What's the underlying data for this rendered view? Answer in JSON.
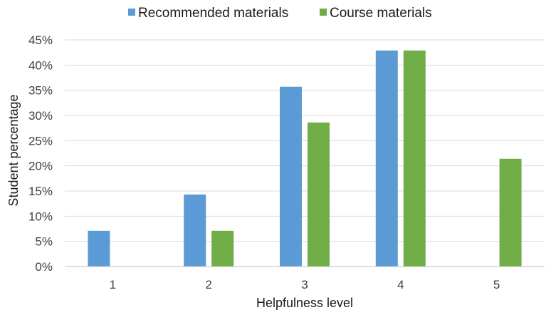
{
  "chart_data": {
    "type": "bar",
    "title": "",
    "xlabel": "Helpfulness level",
    "ylabel": "Student percentage",
    "categories": [
      "1",
      "2",
      "3",
      "4",
      "5"
    ],
    "series": [
      {
        "name": "Recommended materials",
        "color": "#5b9bd5",
        "values": [
          7.1,
          14.3,
          35.7,
          42.9,
          0
        ]
      },
      {
        "name": "Course materials",
        "color": "#70ad47",
        "values": [
          0,
          7.1,
          28.6,
          42.9,
          21.4
        ]
      }
    ],
    "ylim": [
      0,
      45
    ],
    "yticks": [
      0,
      5,
      10,
      15,
      20,
      25,
      30,
      35,
      40,
      45
    ],
    "ytick_labels": [
      "0%",
      "5%",
      "10%",
      "15%",
      "20%",
      "25%",
      "30%",
      "35%",
      "40%",
      "45%"
    ],
    "grid": true,
    "legend_position": "top-center"
  }
}
